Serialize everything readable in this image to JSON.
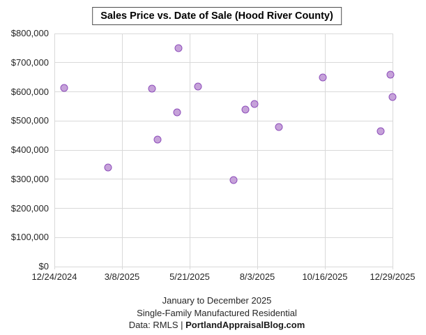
{
  "chart_data": {
    "type": "scatter",
    "title": "Sales Price vs. Date of Sale (Hood River County)",
    "xlabel": "",
    "ylabel": "",
    "ylim": [
      0,
      800000
    ],
    "x_range": [
      "12/24/2024",
      "12/29/2025"
    ],
    "grid": true,
    "legend": "none",
    "x_tick_labels": [
      "12/24/2024",
      "3/8/2025",
      "5/21/2025",
      "8/3/2025",
      "10/16/2025",
      "12/29/2025"
    ],
    "y_tick_labels": [
      "$0",
      "$100,000",
      "$200,000",
      "$300,000",
      "$400,000",
      "$500,000",
      "$600,000",
      "$700,000",
      "$800,000"
    ],
    "points": [
      {
        "date": "1/4/2025",
        "price": 614000
      },
      {
        "date": "2/21/2025",
        "price": 339000
      },
      {
        "date": "4/10/2025",
        "price": 610000
      },
      {
        "date": "4/16/2025",
        "price": 436000
      },
      {
        "date": "5/7/2025",
        "price": 530000
      },
      {
        "date": "5/9/2025",
        "price": 750000
      },
      {
        "date": "5/30/2025",
        "price": 618000
      },
      {
        "date": "7/8/2025",
        "price": 297000
      },
      {
        "date": "7/21/2025",
        "price": 539000
      },
      {
        "date": "7/31/2025",
        "price": 559000
      },
      {
        "date": "8/27/2025",
        "price": 480000
      },
      {
        "date": "10/14/2025",
        "price": 649000
      },
      {
        "date": "12/16/2025",
        "price": 464000
      },
      {
        "date": "12/27/2025",
        "price": 659000
      },
      {
        "date": "12/29/2025",
        "price": 583000
      }
    ]
  },
  "colors": {
    "marker_fill": "#C6A2D9",
    "marker_stroke": "#8E4FBB",
    "gridline": "#D9D9D9",
    "axis_text": "#262626",
    "title_border": "#4D4D4D"
  },
  "footer": {
    "line1": "January to December 2025",
    "line2": "Single-Family Manufactured Residential",
    "line3_prefix": "Data: RMLS | ",
    "line3_bold": "PortlandAppraisalBlog.com"
  }
}
